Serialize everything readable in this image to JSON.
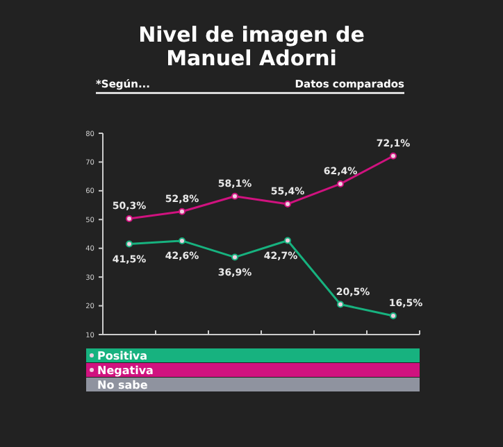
{
  "chart_data": {
    "type": "line",
    "title": "Nivel de imagen de Manuel Adorni",
    "subtitle": "*Según...",
    "annotations": [
      "Datos comparados"
    ],
    "categories": [
      null,
      null,
      null,
      null,
      null,
      null
    ],
    "series": [
      {
        "name": "Positiva",
        "color": "#17b27f",
        "values": [
          41.5,
          42.6,
          36.9,
          42.7,
          20.5,
          16.5
        ],
        "value_labels": [
          "41,5%",
          "42,6%",
          "36,9%",
          "42,7%",
          "20,5%",
          "16,5%"
        ]
      },
      {
        "name": "Negativa",
        "color": "#d0127f",
        "values": [
          50.3,
          52.8,
          58.1,
          55.4,
          62.4,
          72.1
        ],
        "value_labels": [
          "50,3%",
          "52,8%",
          "58,1%",
          "55,4%",
          "62,4%",
          "72,1%"
        ]
      },
      {
        "name": "No sabe",
        "color": "#8f939f",
        "values": [
          null,
          null,
          null,
          null,
          null,
          null
        ]
      }
    ],
    "ylim": [
      10,
      80
    ],
    "yticks": [
      10,
      20,
      30,
      40,
      50,
      60,
      70,
      80
    ],
    "marker": "circle",
    "legend": "bottom",
    "grid": false
  }
}
